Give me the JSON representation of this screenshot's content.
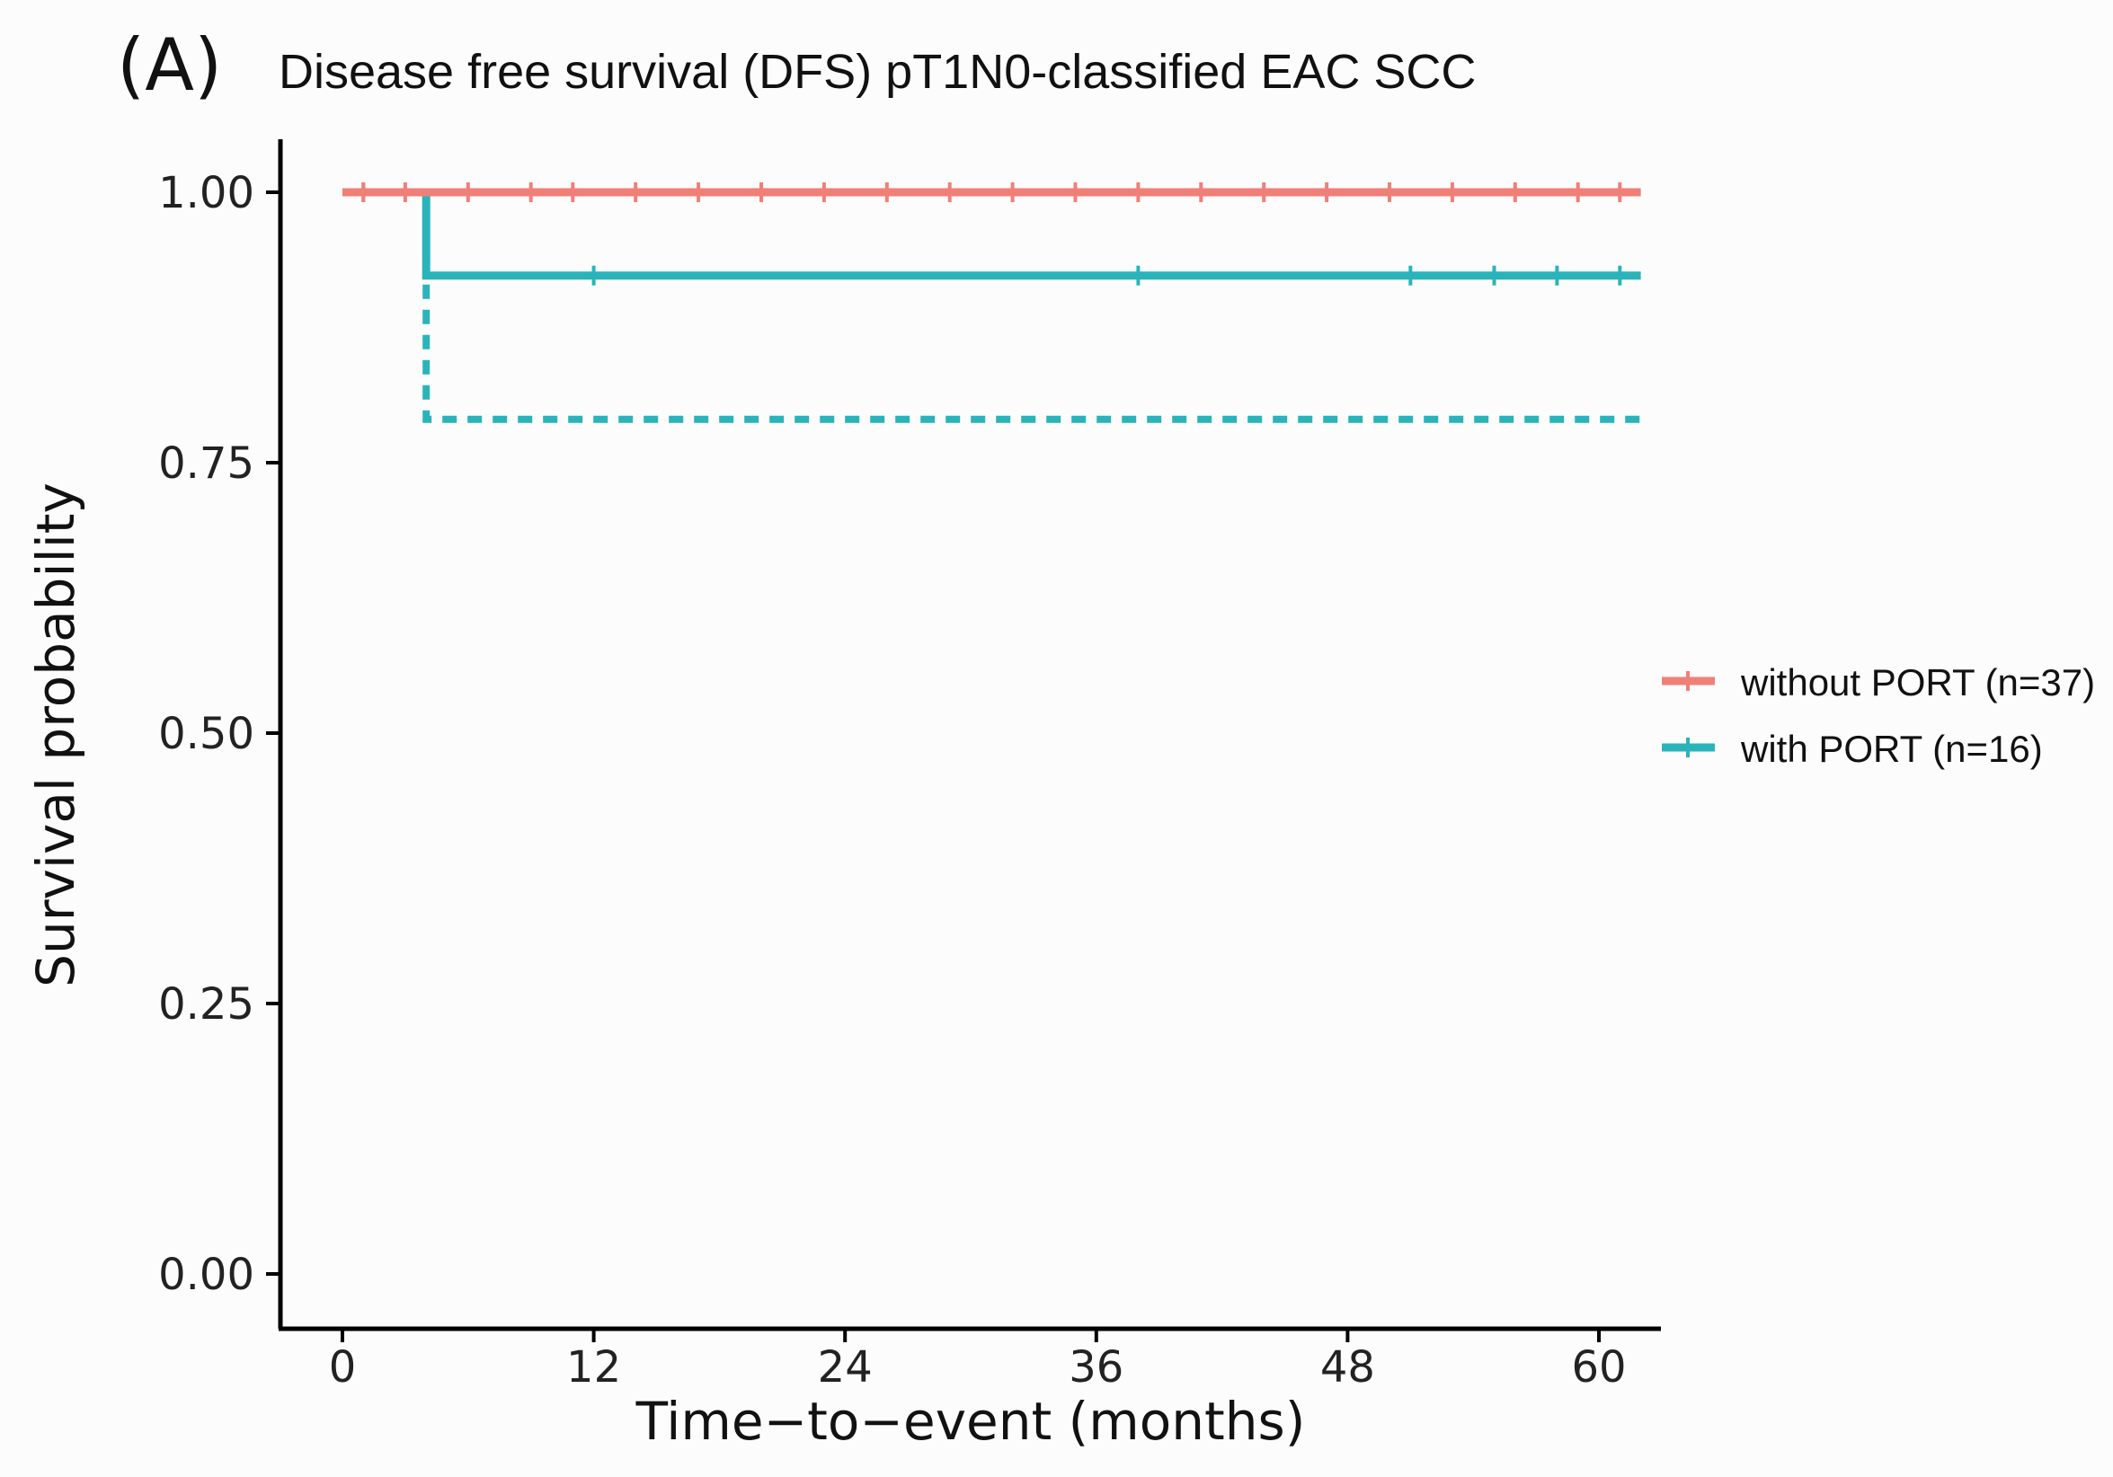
{
  "panel_label": "(A)",
  "chart_data": {
    "type": "line",
    "subtype": "kaplan-meier",
    "title": "Disease free survival (DFS) pT1N0-classified EAC SCC",
    "xlabel": "Time−to−event (months)",
    "ylabel": "Survival probability",
    "xlim": [
      0,
      62
    ],
    "ylim": [
      0,
      1
    ],
    "x_ticks": [
      0,
      12,
      24,
      36,
      48,
      60
    ],
    "x_tick_labels": [
      "0",
      "12",
      "24",
      "36",
      "48",
      "60"
    ],
    "y_ticks": [
      0,
      0.25,
      0.5,
      0.75,
      1
    ],
    "y_tick_labels": [
      "0.00",
      "0.25",
      "0.50",
      "0.75",
      "1.00"
    ],
    "grid": false,
    "legend": {
      "position": "right"
    },
    "series": [
      {
        "name": "without PORT (n=37)",
        "color": "#f07f78",
        "steps": [
          [
            0,
            1.0
          ],
          [
            62,
            1.0
          ]
        ],
        "censor_times": [
          1,
          3,
          6,
          9,
          11,
          14,
          17,
          20,
          23,
          26,
          29,
          32,
          35,
          38,
          41,
          44,
          47,
          50,
          53,
          56,
          59,
          61
        ],
        "confidence_lower": [
          [
            0,
            1.0
          ],
          [
            62,
            1.0
          ]
        ]
      },
      {
        "name": "with PORT (n=16)",
        "color": "#2ab4ba",
        "steps": [
          [
            0,
            1.0
          ],
          [
            4,
            1.0
          ],
          [
            4,
            0.923
          ],
          [
            62,
            0.923
          ]
        ],
        "censor_times": [
          1,
          12,
          38,
          51,
          55,
          58,
          61
        ],
        "confidence_lower": [
          [
            0,
            1.0
          ],
          [
            4,
            1.0
          ],
          [
            4,
            0.79
          ],
          [
            62,
            0.79
          ]
        ]
      }
    ]
  }
}
